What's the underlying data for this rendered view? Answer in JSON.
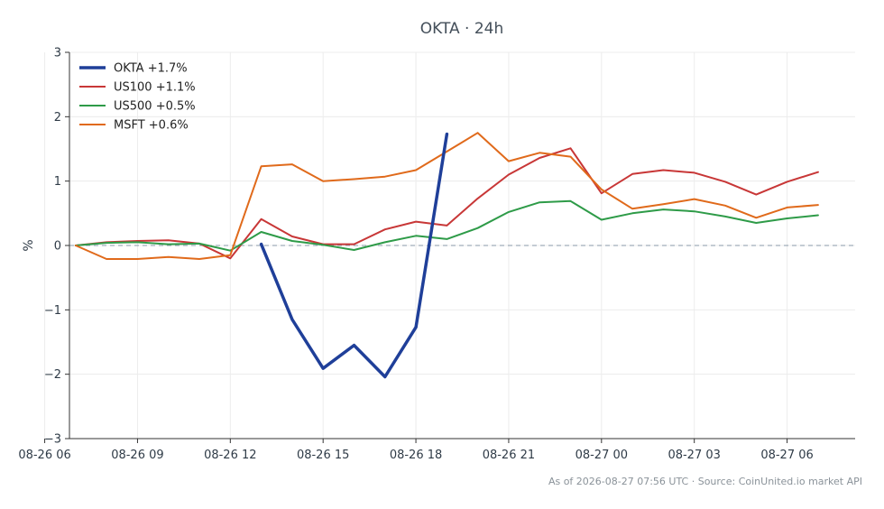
{
  "chart_data": {
    "type": "line",
    "title": "OKTA · 24h",
    "ylabel": "%",
    "xlabel": "",
    "ylim": [
      -3,
      3
    ],
    "yticks": [
      -3,
      -2,
      -1,
      0,
      1,
      2,
      3
    ],
    "ytick_labels": [
      "−3",
      "−2",
      "−1",
      "0",
      "1",
      "2",
      "3"
    ],
    "x_hours": [
      7,
      8,
      9,
      10,
      11,
      12,
      13,
      14,
      15,
      16,
      17,
      18,
      19,
      20,
      21,
      22,
      23,
      24,
      25,
      26,
      27,
      28,
      29,
      30,
      31
    ],
    "xlim_hours": [
      6.8,
      32.2
    ],
    "xticks_hours": [
      6,
      9,
      12,
      15,
      18,
      21,
      24,
      27,
      30
    ],
    "xtick_labels": [
      "08-26 06",
      "08-26 09",
      "08-26 12",
      "08-26 15",
      "08-26 18",
      "08-26 21",
      "08-27 00",
      "08-27 03",
      "08-27 06"
    ],
    "grid": true,
    "zero_line": true,
    "legend_position": "top-left",
    "series": [
      {
        "name": "OKTA +1.7%",
        "color": "#1f3f99",
        "width": 3.5,
        "x_hours": [
          13,
          14,
          15,
          16,
          17,
          18,
          19
        ],
        "values": [
          0.02,
          -1.15,
          -1.91,
          -1.55,
          -2.04,
          -1.27,
          1.73
        ]
      },
      {
        "name": "US100 +1.1%",
        "color": "#c83737",
        "width": 2,
        "x_hours": [
          7,
          8,
          9,
          10,
          11,
          12,
          13,
          14,
          15,
          16,
          17,
          18,
          19,
          20,
          21,
          22,
          23,
          24,
          25,
          26,
          27,
          28,
          29,
          30,
          31
        ],
        "values": [
          0.0,
          0.05,
          0.07,
          0.08,
          0.03,
          -0.2,
          0.41,
          0.14,
          0.02,
          0.02,
          0.25,
          0.37,
          0.31,
          0.73,
          1.1,
          1.36,
          1.51,
          0.81,
          1.11,
          1.17,
          1.13,
          0.99,
          0.79,
          0.99,
          1.14
        ]
      },
      {
        "name": "US500 +0.5%",
        "color": "#2e9b48",
        "width": 2,
        "x_hours": [
          7,
          8,
          9,
          10,
          11,
          12,
          13,
          14,
          15,
          16,
          17,
          18,
          19,
          20,
          21,
          22,
          23,
          24,
          25,
          26,
          27,
          28,
          29,
          30,
          31
        ],
        "values": [
          0.0,
          0.04,
          0.05,
          0.02,
          0.03,
          -0.08,
          0.21,
          0.07,
          0.01,
          -0.07,
          0.05,
          0.15,
          0.1,
          0.27,
          0.52,
          0.67,
          0.69,
          0.4,
          0.5,
          0.56,
          0.53,
          0.45,
          0.35,
          0.42,
          0.47
        ]
      },
      {
        "name": "MSFT +0.6%",
        "color": "#e06a1b",
        "width": 2,
        "x_hours": [
          7,
          8,
          9,
          10,
          11,
          12,
          13,
          14,
          15,
          16,
          17,
          18,
          19,
          20,
          21,
          22,
          23,
          24,
          25,
          26,
          27,
          28,
          29,
          30,
          31
        ],
        "values": [
          0.0,
          -0.21,
          -0.21,
          -0.18,
          -0.21,
          -0.15,
          1.23,
          1.26,
          1.0,
          1.03,
          1.07,
          1.17,
          1.46,
          1.75,
          1.31,
          1.44,
          1.38,
          0.87,
          0.57,
          0.64,
          0.72,
          0.62,
          0.43,
          0.59,
          0.63
        ]
      }
    ]
  },
  "footer": "As of 2026-08-27 07:56 UTC · Source: CoinUnited.io market API"
}
